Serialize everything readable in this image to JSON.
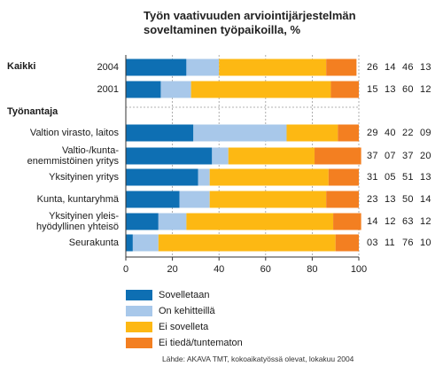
{
  "chart_data": {
    "type": "bar",
    "stacked": true,
    "orientation": "horizontal",
    "title_lines": [
      "Työn vaativuuden arviointijärjestelmän",
      "soveltaminen työpaikoilla, %"
    ],
    "groups": [
      {
        "label": "Kaikki",
        "rows": [
          0,
          1
        ]
      },
      {
        "label": "Työnantaja",
        "rows": [
          2,
          3,
          4,
          5,
          6,
          7
        ]
      }
    ],
    "categories": [
      "2004",
      "2001",
      "Valtion virasto, laitos",
      "Valtio-/kunta-\nenemmistöinen yritys",
      "Yksityinen yritys",
      "Kunta, kuntaryhmä",
      "Yksityinen yleis-\nhyödyllinen yhteisö",
      "Seurakunta"
    ],
    "series": [
      {
        "name": "Sovelletaan",
        "color": "#0e6fb3",
        "values": [
          26,
          15,
          29,
          37,
          31,
          23,
          14,
          3
        ]
      },
      {
        "name": "On kehitteillä",
        "color": "#a8c8ea",
        "values": [
          14,
          13,
          40,
          7,
          5,
          13,
          12,
          11
        ]
      },
      {
        "name": "Ei sovelleta",
        "color": "#fdb813",
        "values": [
          46,
          60,
          22,
          37,
          51,
          50,
          63,
          76
        ]
      },
      {
        "name": "Ei tiedä/tuntematon",
        "color": "#f37f21",
        "values": [
          13,
          12,
          9,
          20,
          13,
          14,
          12,
          10
        ]
      }
    ],
    "value_labels": [
      [
        "26",
        "14",
        "46",
        "13"
      ],
      [
        "15",
        "13",
        "60",
        "12"
      ],
      [
        "29",
        "40",
        "22",
        "09"
      ],
      [
        "37",
        "07",
        "37",
        "20"
      ],
      [
        "31",
        "05",
        "51",
        "13"
      ],
      [
        "23",
        "13",
        "50",
        "14"
      ],
      [
        "14",
        "12",
        "63",
        "12"
      ],
      [
        "03",
        "11",
        "76",
        "10"
      ]
    ],
    "xlim": [
      0,
      100
    ],
    "xticks": [
      0,
      20,
      40,
      60,
      80,
      100
    ],
    "grid": "vertical dashed",
    "legend_position": "bottom-left",
    "source": "Lähde: AKAVA TMT, kokoaikatyössä olevat, lokakuu 2004"
  }
}
